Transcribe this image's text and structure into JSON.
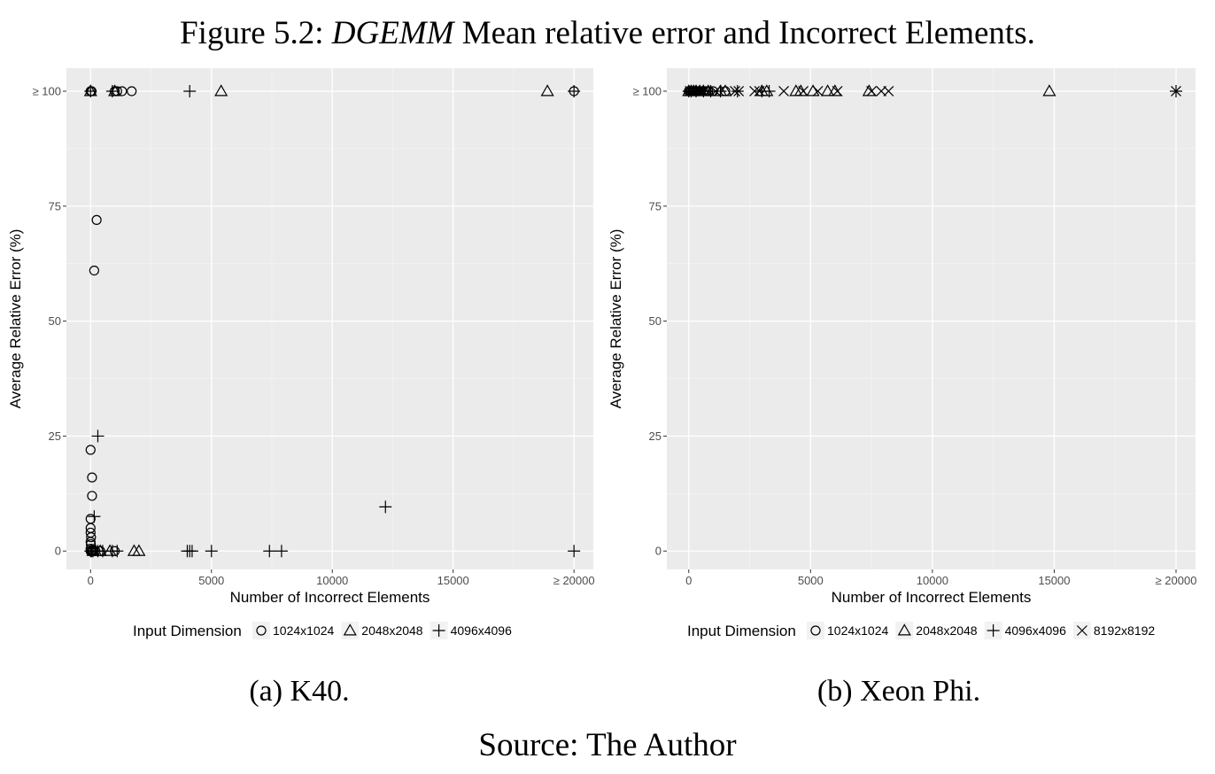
{
  "figure": {
    "title_prefix": "Figure 5.2: ",
    "title_emph": "DGEMM",
    "title_rest": " Mean relative error and Incorrect Elements.",
    "source": "Source: The Author"
  },
  "chart_data": [
    {
      "type": "scatter",
      "caption": "(a) K40.",
      "xlabel": "Number of Incorrect Elements",
      "ylabel": "Average Relative Error (%)",
      "xlim": [
        -1000,
        20800
      ],
      "ylim": [
        -4,
        105
      ],
      "x_ticks": [
        0,
        5000,
        10000,
        15000,
        20000
      ],
      "x_tick_labels": [
        "0",
        "5000",
        "10000",
        "15000",
        "≥ 20000"
      ],
      "y_ticks": [
        0,
        25,
        50,
        75,
        100
      ],
      "y_tick_labels": [
        "0",
        "25",
        "50",
        "75",
        "≥ 100"
      ],
      "grid": true,
      "legend": {
        "title": "Input Dimension",
        "placement": "bottom",
        "entries": [
          {
            "label": "1024x1024",
            "shape": "circle"
          },
          {
            "label": "2048x2048",
            "shape": "triangle"
          },
          {
            "label": "4096x4096",
            "shape": "plus"
          }
        ]
      },
      "series": [
        {
          "name": "1024x1024",
          "shape": "circle",
          "points": [
            [
              0,
              100
            ],
            [
              40,
              100
            ],
            [
              1000,
              100
            ],
            [
              1100,
              100
            ],
            [
              1300,
              100
            ],
            [
              1700,
              100
            ],
            [
              20000,
              100
            ],
            [
              250,
              72
            ],
            [
              150,
              61
            ],
            [
              0,
              22
            ],
            [
              60,
              16
            ],
            [
              60,
              12
            ],
            [
              0,
              7
            ],
            [
              0,
              5
            ],
            [
              0,
              4
            ],
            [
              20,
              3
            ],
            [
              0,
              2
            ],
            [
              10,
              1.5
            ],
            [
              0,
              0.5
            ],
            [
              0,
              0
            ],
            [
              20,
              0
            ],
            [
              30,
              0
            ],
            [
              50,
              0
            ],
            [
              100,
              0
            ],
            [
              200,
              0
            ],
            [
              400,
              0
            ],
            [
              1000,
              0
            ]
          ]
        },
        {
          "name": "2048x2048",
          "shape": "triangle",
          "points": [
            [
              0,
              100
            ],
            [
              1000,
              100
            ],
            [
              5400,
              100
            ],
            [
              18900,
              100
            ],
            [
              100,
              0
            ],
            [
              200,
              0
            ],
            [
              400,
              0
            ],
            [
              800,
              0
            ],
            [
              1800,
              0
            ],
            [
              2000,
              0
            ]
          ]
        },
        {
          "name": "4096x4096",
          "shape": "plus",
          "points": [
            [
              0,
              100
            ],
            [
              900,
              100
            ],
            [
              4100,
              100
            ],
            [
              20000,
              100
            ],
            [
              300,
              25
            ],
            [
              12200,
              9.6
            ],
            [
              150,
              7.5
            ],
            [
              0,
              0
            ],
            [
              50,
              0
            ],
            [
              100,
              0
            ],
            [
              300,
              0
            ],
            [
              500,
              0
            ],
            [
              900,
              0
            ],
            [
              1100,
              0
            ],
            [
              4000,
              0
            ],
            [
              4100,
              0
            ],
            [
              4200,
              0
            ],
            [
              5000,
              0
            ],
            [
              7400,
              0
            ],
            [
              7900,
              0
            ],
            [
              20000,
              0
            ]
          ]
        }
      ]
    },
    {
      "type": "scatter",
      "caption": "(b) Xeon Phi.",
      "xlabel": "Number of Incorrect Elements",
      "ylabel": "Average Relative Error (%)",
      "xlim": [
        -900,
        20800
      ],
      "ylim": [
        -4,
        105
      ],
      "x_ticks": [
        0,
        5000,
        10000,
        15000,
        20000
      ],
      "x_tick_labels": [
        "0",
        "5000",
        "10000",
        "15000",
        "≥ 20000"
      ],
      "y_ticks": [
        0,
        25,
        50,
        75,
        100
      ],
      "y_tick_labels": [
        "0",
        "25",
        "50",
        "75",
        "≥ 100"
      ],
      "grid": true,
      "legend": {
        "title": "Input Dimension",
        "placement": "bottom",
        "entries": [
          {
            "label": "1024x1024",
            "shape": "circle"
          },
          {
            "label": "2048x2048",
            "shape": "triangle"
          },
          {
            "label": "4096x4096",
            "shape": "plus"
          },
          {
            "label": "8192x8192",
            "shape": "cross"
          }
        ]
      },
      "series": [
        {
          "name": "1024x1024",
          "shape": "circle",
          "points": [
            [
              0,
              100
            ],
            [
              50,
              100
            ],
            [
              100,
              100
            ],
            [
              150,
              100
            ],
            [
              200,
              100
            ],
            [
              250,
              100
            ],
            [
              300,
              100
            ],
            [
              350,
              100
            ],
            [
              400,
              100
            ],
            [
              500,
              100
            ],
            [
              600,
              100
            ],
            [
              700,
              100
            ],
            [
              800,
              100
            ],
            [
              1000,
              100
            ],
            [
              1500,
              100
            ]
          ]
        },
        {
          "name": "2048x2048",
          "shape": "triangle",
          "points": [
            [
              0,
              100
            ],
            [
              100,
              100
            ],
            [
              200,
              100
            ],
            [
              300,
              100
            ],
            [
              450,
              100
            ],
            [
              600,
              100
            ],
            [
              800,
              100
            ],
            [
              1300,
              100
            ],
            [
              1500,
              100
            ],
            [
              3000,
              100
            ],
            [
              3200,
              100
            ],
            [
              4400,
              100
            ],
            [
              4600,
              100
            ],
            [
              5100,
              100
            ],
            [
              5700,
              100
            ],
            [
              6000,
              100
            ],
            [
              7400,
              100
            ],
            [
              14800,
              100
            ]
          ]
        },
        {
          "name": "4096x4096",
          "shape": "plus",
          "points": [
            [
              0,
              100
            ],
            [
              100,
              100
            ],
            [
              300,
              100
            ],
            [
              600,
              100
            ],
            [
              900,
              100
            ],
            [
              1300,
              100
            ],
            [
              2000,
              100
            ],
            [
              3000,
              100
            ],
            [
              3300,
              100
            ],
            [
              20000,
              100
            ]
          ]
        },
        {
          "name": "8192x8192",
          "shape": "cross",
          "points": [
            [
              50,
              100
            ],
            [
              150,
              100
            ],
            [
              250,
              100
            ],
            [
              400,
              100
            ],
            [
              600,
              100
            ],
            [
              1100,
              100
            ],
            [
              1900,
              100
            ],
            [
              2050,
              100
            ],
            [
              2700,
              100
            ],
            [
              2900,
              100
            ],
            [
              3900,
              100
            ],
            [
              4700,
              100
            ],
            [
              5300,
              100
            ],
            [
              6100,
              100
            ],
            [
              7500,
              100
            ],
            [
              7900,
              100
            ],
            [
              8200,
              100
            ],
            [
              20000,
              100
            ]
          ]
        }
      ]
    }
  ]
}
